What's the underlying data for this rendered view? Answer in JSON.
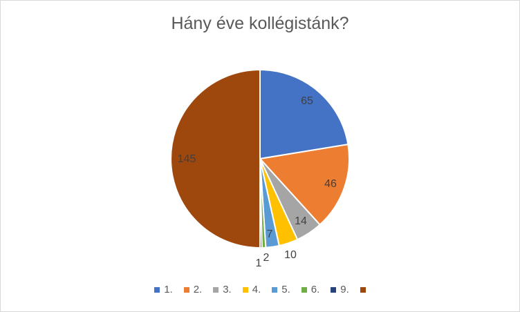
{
  "chart_data": {
    "type": "pie",
    "title": "Hány éve kollégistánk?",
    "categories": [
      "1.",
      "2.",
      "3.",
      "4.",
      "5.",
      "6.",
      "9.",
      ""
    ],
    "values": [
      65,
      46,
      14,
      10,
      7,
      2,
      1,
      145
    ],
    "colors": [
      "#4472C4",
      "#ED7D31",
      "#A5A5A5",
      "#FFC000",
      "#5B9BD5",
      "#70AD47",
      "#264478",
      "#9E480E"
    ],
    "legend": "bottom",
    "data_labels": true
  }
}
